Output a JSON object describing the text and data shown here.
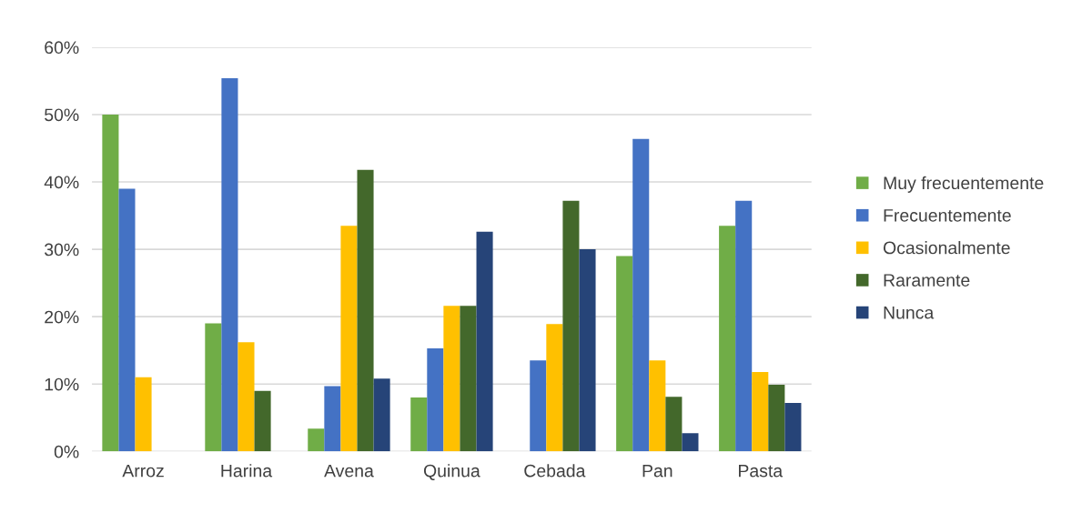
{
  "chart_data": {
    "type": "bar",
    "categories": [
      "Arroz",
      "Harina",
      "Avena",
      "Quinua",
      "Cebada",
      "Pan",
      "Pasta"
    ],
    "series": [
      {
        "name": "Muy frecuentemente",
        "color": "#70ad47",
        "values": [
          50,
          19,
          3.4,
          8,
          0,
          29,
          33.5
        ]
      },
      {
        "name": "Frecuentemente",
        "color": "#4472c4",
        "values": [
          39,
          55.4,
          9.7,
          15.3,
          13.5,
          46.4,
          37.2
        ]
      },
      {
        "name": "Ocasionalmente",
        "color": "#ffc000",
        "values": [
          11,
          16.2,
          33.5,
          21.6,
          18.9,
          13.5,
          11.8
        ]
      },
      {
        "name": "Raramente",
        "color": "#43682b",
        "values": [
          0,
          9,
          41.8,
          21.6,
          37.2,
          8.1,
          9.9
        ]
      },
      {
        "name": "Nunca",
        "color": "#264478",
        "values": [
          0,
          0,
          10.8,
          32.6,
          30,
          2.7,
          7.2
        ]
      }
    ],
    "ylim": [
      0,
      60
    ],
    "yticks": [
      {
        "value": 0,
        "label": "0%"
      },
      {
        "value": 10,
        "label": "10%"
      },
      {
        "value": 20,
        "label": "20%"
      },
      {
        "value": 30,
        "label": "30%"
      },
      {
        "value": 40,
        "label": "40%"
      },
      {
        "value": 50,
        "label": "50%"
      },
      {
        "value": 60,
        "label": "60%"
      }
    ],
    "grid": "y",
    "legend": "right"
  }
}
